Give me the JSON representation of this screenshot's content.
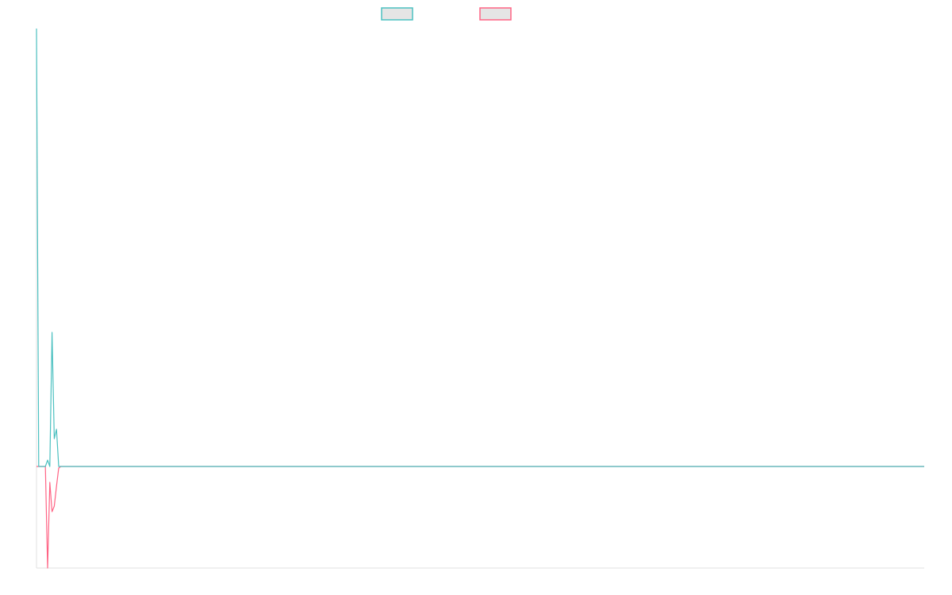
{
  "chart_data": {
    "type": "line",
    "title": "",
    "xlabel": "",
    "ylabel": "",
    "xlim": [
      0,
      400
    ],
    "ylim": [
      -128,
      552
    ],
    "grid": false,
    "legend": "top-center",
    "series": [
      {
        "color": "#4bc0c0",
        "points": [
          [
            0,
            552
          ],
          [
            1,
            0
          ],
          [
            4,
            0
          ],
          [
            5,
            8
          ],
          [
            6,
            0
          ],
          [
            7,
            169
          ],
          [
            8,
            35
          ],
          [
            9,
            47
          ],
          [
            10,
            0
          ],
          [
            400,
            0
          ]
        ]
      },
      {
        "color": "#ff6384",
        "points": [
          [
            0,
            0
          ],
          [
            1,
            0
          ],
          [
            4,
            0
          ],
          [
            5,
            -128
          ],
          [
            6,
            -20
          ],
          [
            7,
            -57
          ],
          [
            8,
            -50
          ],
          [
            9,
            -25
          ],
          [
            10,
            -2
          ],
          [
            11,
            0
          ],
          [
            400,
            0
          ]
        ]
      }
    ],
    "legend_fill": "#e5e5e5",
    "axis_color": "#e0e0e0"
  }
}
